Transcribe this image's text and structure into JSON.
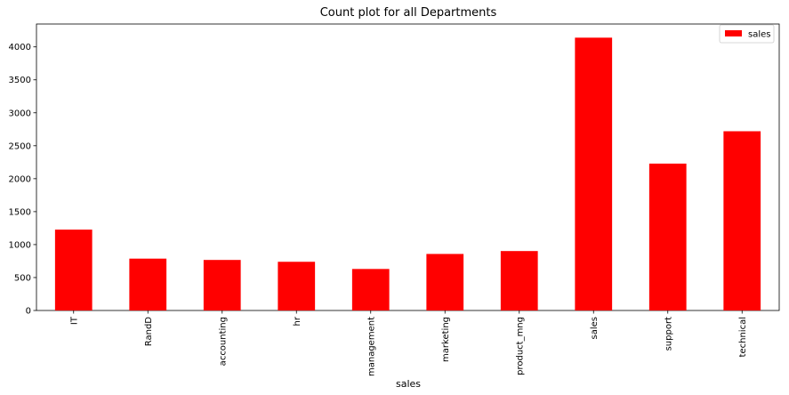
{
  "chart_data": {
    "type": "bar",
    "title": "Count plot for all Departments",
    "xlabel": "sales",
    "ylabel": "",
    "categories": [
      "IT",
      "RandD",
      "accounting",
      "hr",
      "management",
      "marketing",
      "product_mng",
      "sales",
      "support",
      "technical"
    ],
    "series": [
      {
        "name": "sales",
        "color": "#ff0000",
        "values": [
          1227,
          787,
          767,
          739,
          630,
          858,
          902,
          4140,
          2229,
          2720
        ]
      }
    ],
    "ylim": [
      0,
      4347
    ],
    "yticks": [
      0,
      500,
      1000,
      1500,
      2000,
      2500,
      3000,
      3500,
      4000
    ],
    "grid": false,
    "legend_position": "top-right",
    "xtick_rotation": "vertical"
  }
}
